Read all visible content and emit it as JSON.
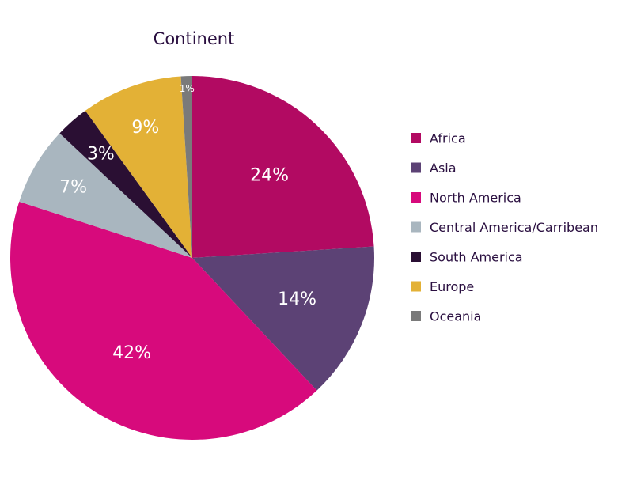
{
  "chart_data": {
    "type": "pie",
    "title": "Continent",
    "legend_position": "right",
    "start_angle": "12 o'clock",
    "direction": "clockwise",
    "slices": [
      {
        "label": "Africa",
        "value": 24,
        "display": "24%",
        "color": "#b20a62"
      },
      {
        "label": "Asia",
        "value": 14,
        "display": "14%",
        "color": "#5c4275"
      },
      {
        "label": "North America",
        "value": 42,
        "display": "42%",
        "color": "#d70a7c"
      },
      {
        "label": "Central America/Carribean",
        "value": 7,
        "display": "7%",
        "color": "#a9b6bf"
      },
      {
        "label": "South America",
        "value": 3,
        "display": "3%",
        "color": "#2a0f33"
      },
      {
        "label": "Europe",
        "value": 9,
        "display": "9%",
        "color": "#e3b136"
      },
      {
        "label": "Oceania",
        "value": 1,
        "display": "1%",
        "color": "#7a7a7a"
      }
    ]
  }
}
